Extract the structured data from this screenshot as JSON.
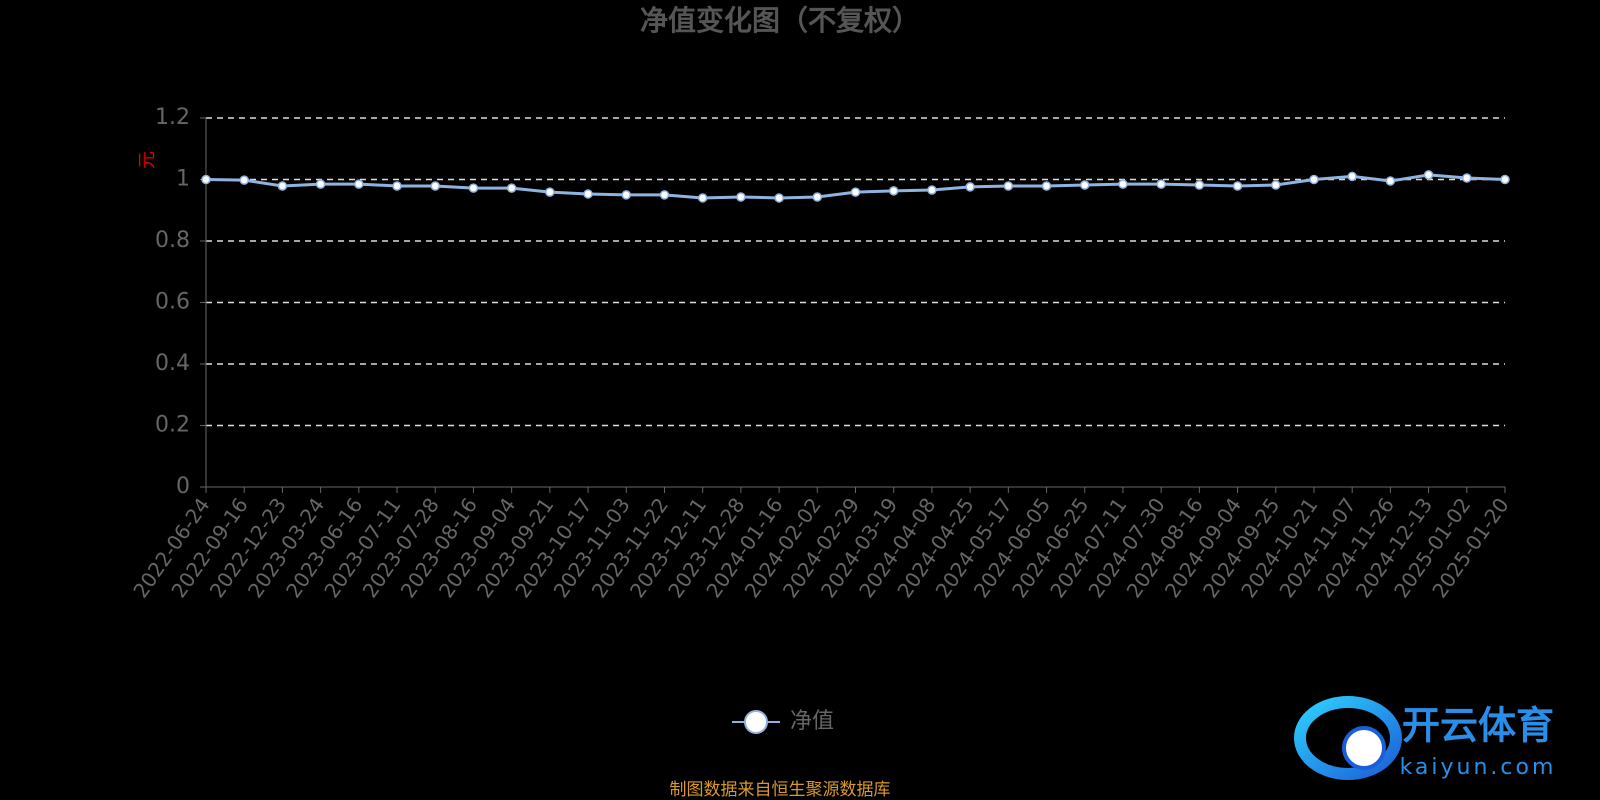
{
  "chart_data": {
    "type": "line",
    "title": "净值变化图（不复权）",
    "y_label": "元",
    "categories": [
      "2022-06-24",
      "2022-09-16",
      "2022-12-23",
      "2023-03-24",
      "2023-06-16",
      "2023-07-11",
      "2023-07-28",
      "2023-08-16",
      "2023-09-04",
      "2023-09-21",
      "2023-10-17",
      "2023-11-03",
      "2023-11-22",
      "2023-12-11",
      "2023-12-28",
      "2024-01-16",
      "2024-02-02",
      "2024-02-29",
      "2024-03-19",
      "2024-04-08",
      "2024-04-25",
      "2024-05-17",
      "2024-06-05",
      "2024-06-25",
      "2024-07-11",
      "2024-07-30",
      "2024-08-16",
      "2024-09-04",
      "2024-09-25",
      "2024-10-21",
      "2024-11-07",
      "2024-11-26",
      "2024-12-13",
      "2025-01-02",
      "2025-01-20"
    ],
    "series": [
      {
        "name": "净值",
        "color": "#8fb4e0",
        "values": [
          1.0,
          0.998,
          0.979,
          0.985,
          0.985,
          0.979,
          0.979,
          0.972,
          0.972,
          0.959,
          0.953,
          0.95,
          0.95,
          0.94,
          0.943,
          0.94,
          0.943,
          0.959,
          0.963,
          0.966,
          0.976,
          0.979,
          0.979,
          0.982,
          0.985,
          0.985,
          0.982,
          0.979,
          0.982,
          1.0,
          1.01,
          0.995,
          1.015,
          1.005,
          1.0
        ]
      }
    ],
    "ylim": [
      0,
      1.2
    ],
    "yticks": [
      0,
      0.2,
      0.4,
      0.6,
      0.8,
      1,
      1.2
    ],
    "grid": true,
    "source": "制图数据来自恒生聚源数据库",
    "watermark": {
      "name": "开云体育",
      "site": "kaiyun.com"
    }
  }
}
